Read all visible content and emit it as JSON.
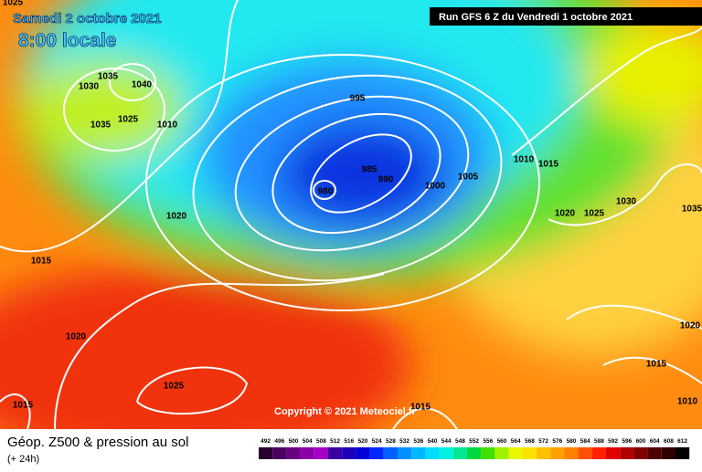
{
  "header": {
    "date": "Samedi 2 octobre 2021",
    "time": "8:00 locale",
    "run": "Run GFS 6 Z du Vendredi 1 octobre 2021"
  },
  "copyright": "Copyright © 2021 Meteociel.fr",
  "footer": {
    "title": "Géop. Z500 & pression au sol",
    "lead": "(+ 24h)"
  },
  "isobar_labels": [
    1025,
    1035,
    1030,
    1040,
    1035,
    1025,
    1010,
    995,
    985,
    990,
    980,
    1000,
    1005,
    1010,
    1015,
    1020,
    1025,
    1030,
    1035,
    1020,
    1015,
    1020,
    1025,
    1015,
    1020,
    1015,
    1010,
    1015
  ],
  "legend": {
    "values": [
      492,
      496,
      500,
      504,
      508,
      512,
      516,
      520,
      524,
      528,
      532,
      536,
      540,
      544,
      548,
      552,
      556,
      560,
      564,
      568,
      572,
      576,
      580,
      584,
      588,
      592,
      596,
      600,
      604,
      608,
      612
    ],
    "colors": [
      "#2b0030",
      "#4b0060",
      "#6a007f",
      "#8c00a8",
      "#a600c8",
      "#3a00a0",
      "#1c00b8",
      "#0000d8",
      "#0028ff",
      "#0060ff",
      "#0090ff",
      "#00b8ff",
      "#00dcff",
      "#00f0e0",
      "#00e890",
      "#00d840",
      "#40e000",
      "#a0f000",
      "#e8f800",
      "#ffe000",
      "#ffc000",
      "#ffa000",
      "#ff8000",
      "#ff5000",
      "#ff2000",
      "#e00000",
      "#b00000",
      "#800000",
      "#500000",
      "#300000",
      "#000000"
    ]
  }
}
